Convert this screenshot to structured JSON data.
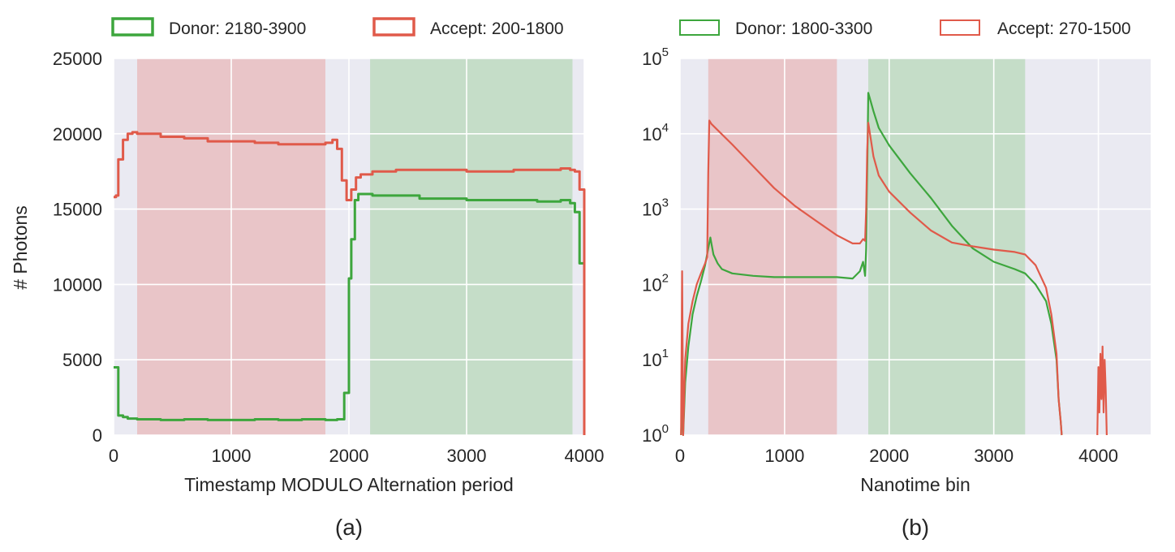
{
  "chart_data": [
    {
      "type": "line",
      "panel_label": "(a)",
      "xlabel": "Timestamp MODULO Alternation period",
      "ylabel": "# Photons",
      "xlim": [
        0,
        4000
      ],
      "ylim": [
        0,
        25000
      ],
      "x_ticks": [
        "0",
        "1000",
        "2000",
        "3000",
        "4000"
      ],
      "y_ticks": [
        "0",
        "5000",
        "10000",
        "15000",
        "20000",
        "25000"
      ],
      "grid": true,
      "legend_placement": "top",
      "shaded_regions": [
        {
          "name": "Accept",
          "from": 200,
          "to": 1800,
          "color": "#e8a6a6"
        },
        {
          "name": "Donor",
          "from": 2180,
          "to": 3900,
          "color": "#a6d2a6"
        }
      ],
      "series": [
        {
          "name": "Donor: 2180-3900",
          "color": "#3da63d",
          "x": [
            0,
            40,
            80,
            120,
            160,
            200,
            400,
            600,
            800,
            1000,
            1200,
            1400,
            1600,
            1800,
            1900,
            1960,
            2000,
            2020,
            2050,
            2080,
            2200,
            2400,
            2600,
            2800,
            3000,
            3200,
            3400,
            3600,
            3800,
            3880,
            3920,
            3960,
            4000
          ],
          "values": [
            4500,
            1300,
            1200,
            1100,
            1100,
            1050,
            1000,
            1050,
            1000,
            1000,
            1050,
            1000,
            1050,
            1000,
            1050,
            2800,
            10400,
            13000,
            15600,
            16000,
            15900,
            15900,
            15700,
            15700,
            15600,
            15600,
            15600,
            15500,
            15600,
            15400,
            14800,
            11400,
            0
          ]
        },
        {
          "name": "Accept: 200-1800",
          "color": "#e05a4a",
          "x": [
            0,
            20,
            40,
            80,
            120,
            160,
            200,
            400,
            600,
            800,
            1000,
            1200,
            1400,
            1600,
            1800,
            1860,
            1900,
            1940,
            1980,
            2020,
            2060,
            2100,
            2200,
            2400,
            2600,
            2800,
            3000,
            3200,
            3400,
            3600,
            3800,
            3880,
            3920,
            3960,
            4000
          ],
          "values": [
            15800,
            15900,
            18300,
            19600,
            20000,
            20100,
            20000,
            19800,
            19700,
            19500,
            19500,
            19400,
            19300,
            19300,
            19400,
            19600,
            19000,
            16900,
            15600,
            16300,
            17100,
            17300,
            17500,
            17600,
            17600,
            17600,
            17500,
            17500,
            17600,
            17600,
            17700,
            17600,
            17500,
            16300,
            0
          ]
        }
      ]
    },
    {
      "type": "line",
      "panel_label": "(b)",
      "xlabel": "Nanotime bin",
      "ylabel": "",
      "scale": "log",
      "xlim": [
        0,
        4500
      ],
      "ylim": [
        1,
        100000
      ],
      "x_ticks": [
        "0",
        "1000",
        "2000",
        "3000",
        "4000"
      ],
      "y_ticks": [
        {
          "base": "10",
          "exp": "0"
        },
        {
          "base": "10",
          "exp": "1"
        },
        {
          "base": "10",
          "exp": "2"
        },
        {
          "base": "10",
          "exp": "3"
        },
        {
          "base": "10",
          "exp": "4"
        },
        {
          "base": "10",
          "exp": "5"
        }
      ],
      "grid": true,
      "legend_placement": "top",
      "shaded_regions": [
        {
          "name": "Accept",
          "from": 270,
          "to": 1500,
          "color": "#e8a6a6"
        },
        {
          "name": "Donor",
          "from": 1800,
          "to": 3300,
          "color": "#a6d2a6"
        }
      ],
      "series": [
        {
          "name": "Donor: 1800-3300",
          "color": "#3da63d",
          "x": [
            10,
            20,
            30,
            50,
            80,
            120,
            160,
            200,
            240,
            270,
            290,
            300,
            320,
            360,
            400,
            500,
            700,
            900,
            1100,
            1300,
            1500,
            1650,
            1720,
            1750,
            1770,
            1780,
            1790,
            1800,
            1850,
            1900,
            2000,
            2200,
            2400,
            2600,
            2800,
            3000,
            3200,
            3300,
            3400,
            3500,
            3550,
            3600,
            3620,
            3640,
            3650
          ],
          "values": [
            1,
            3,
            1,
            5,
            15,
            40,
            70,
            110,
            180,
            300,
            420,
            350,
            250,
            190,
            160,
            140,
            130,
            125,
            125,
            125,
            125,
            120,
            150,
            200,
            130,
            300,
            3000,
            35000,
            20000,
            12000,
            7000,
            3000,
            1400,
            600,
            300,
            200,
            160,
            140,
            100,
            60,
            30,
            10,
            3,
            1.5,
            1
          ]
        },
        {
          "name": "Accept: 270-1500",
          "color": "#e05a4a",
          "x": [
            10,
            20,
            30,
            50,
            80,
            120,
            160,
            200,
            240,
            260,
            270,
            280,
            300,
            500,
            700,
            900,
            1100,
            1300,
            1500,
            1650,
            1720,
            1750,
            1770,
            1780,
            1790,
            1800,
            1850,
            1900,
            2000,
            2200,
            2400,
            2600,
            2800,
            3000,
            3200,
            3300,
            3400,
            3500,
            3550,
            3600,
            3620,
            3640,
            3650
          ],
          "values": [
            1,
            150,
            1,
            10,
            30,
            60,
            100,
            140,
            190,
            230,
            3000,
            15000,
            13500,
            7200,
            3700,
            1900,
            1100,
            700,
            450,
            350,
            350,
            400,
            380,
            1000,
            6000,
            14000,
            5000,
            2800,
            1700,
            900,
            520,
            360,
            320,
            290,
            270,
            250,
            180,
            90,
            40,
            12,
            3,
            1.5,
            1
          ]
        },
        {
          "name": "Accept: 270-1500",
          "color": "#e05a4a",
          "x": [
            3990,
            4000,
            4010,
            4020,
            4030,
            4040,
            4050,
            4060,
            4070,
            4080
          ],
          "values": [
            1,
            8,
            2,
            12,
            3,
            15,
            2,
            10,
            4,
            1
          ]
        }
      ]
    }
  ],
  "legends": [
    {
      "items": [
        {
          "label": "Donor: 2180-3900",
          "color": "#3da63d"
        },
        {
          "label": "Accept: 200-1800",
          "color": "#e05a4a"
        }
      ]
    },
    {
      "items": [
        {
          "label": "Donor: 1800-3300",
          "color": "#3da63d"
        },
        {
          "label": "Accept: 270-1500",
          "color": "#e05a4a"
        }
      ]
    }
  ],
  "colors": {
    "axes_background": "#eaeaf2",
    "grid": "#ffffff",
    "donor": "#3da63d",
    "accept": "#e05a4a"
  }
}
